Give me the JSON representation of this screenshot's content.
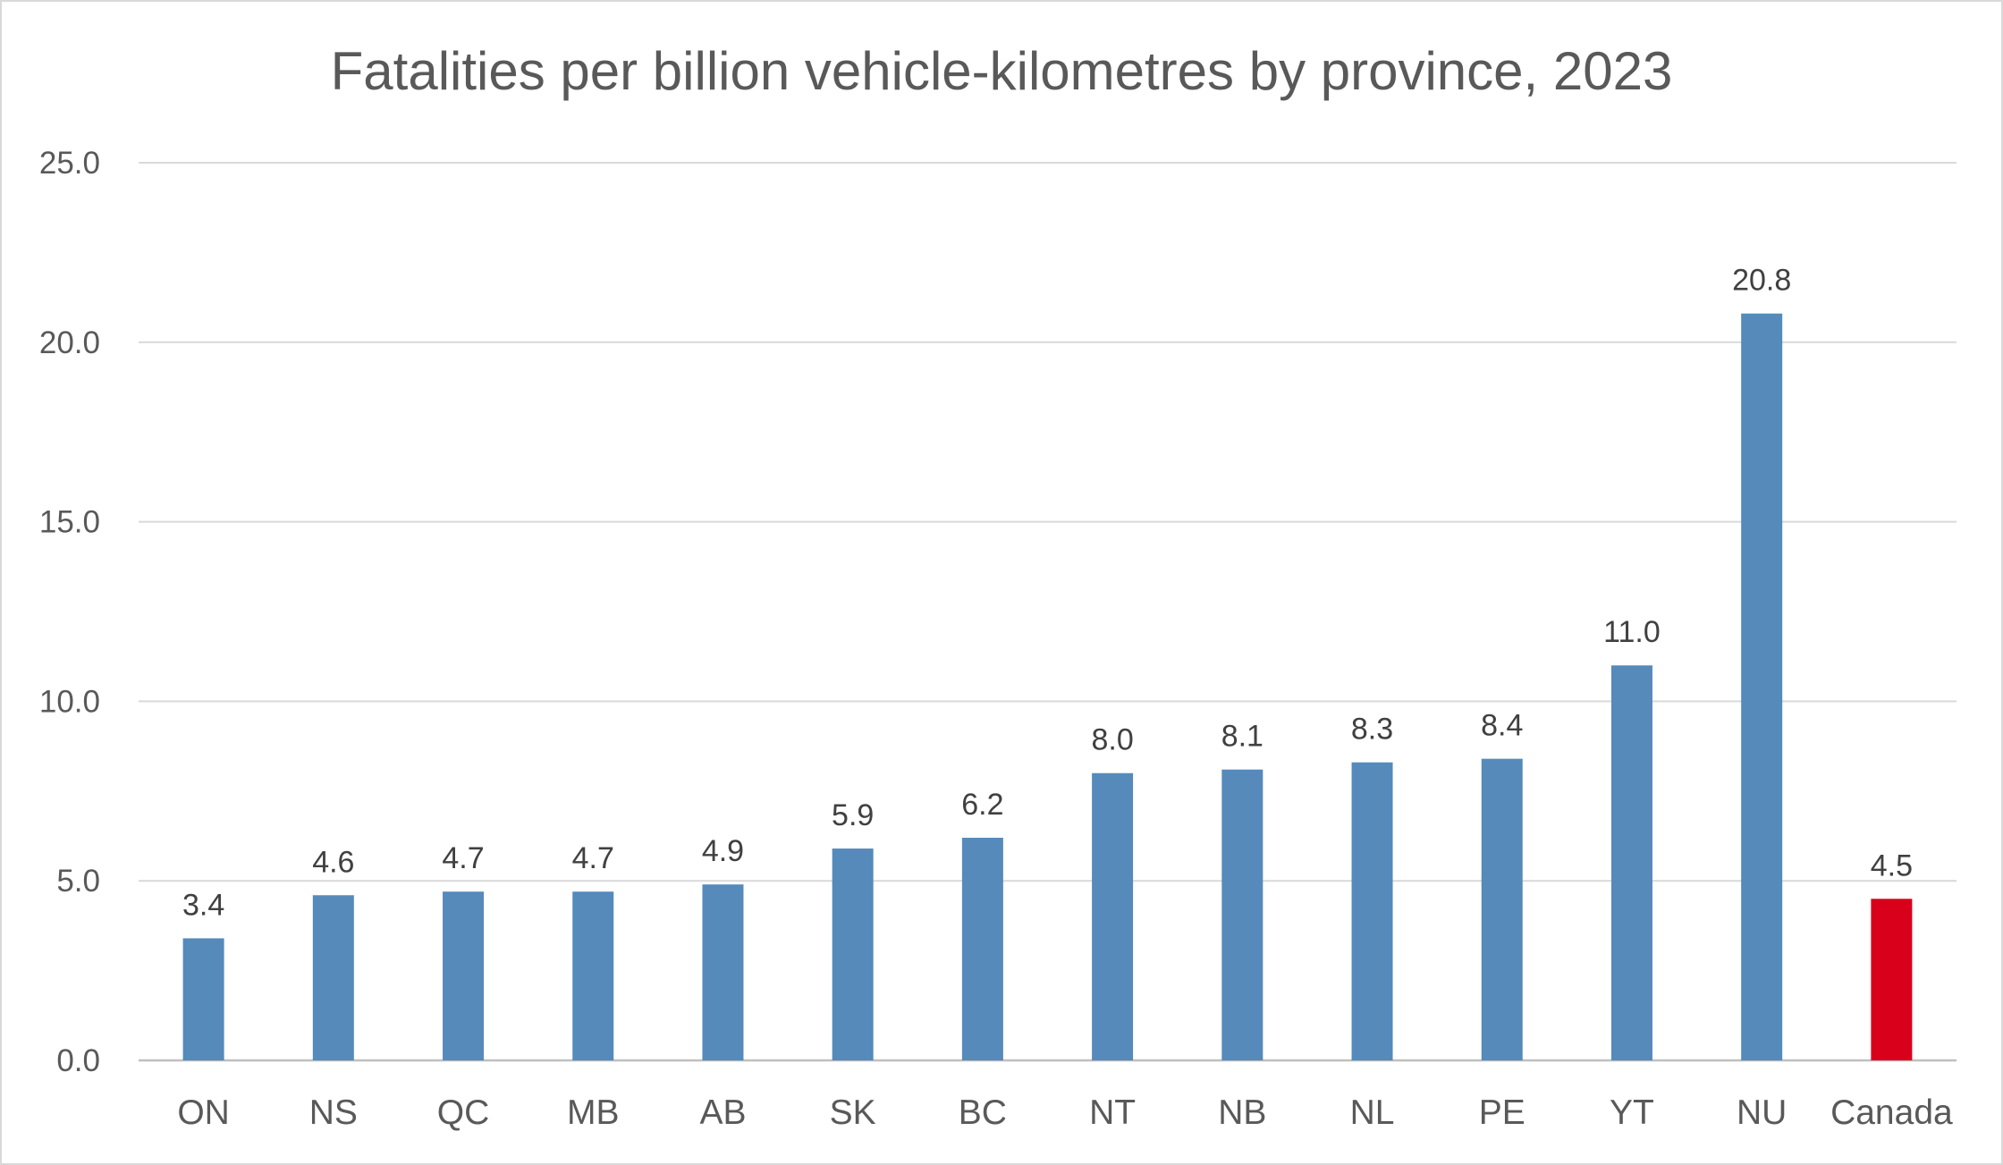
{
  "chart_data": {
    "type": "bar",
    "title": "Fatalities per billion vehicle-kilometres by province, 2023",
    "xlabel": "",
    "ylabel": "",
    "categories": [
      "ON",
      "NS",
      "QC",
      "MB",
      "AB",
      "SK",
      "BC",
      "NT",
      "NB",
      "NL",
      "PE",
      "YT",
      "NU",
      "Canada"
    ],
    "values": [
      3.4,
      4.6,
      4.7,
      4.7,
      4.9,
      5.9,
      6.2,
      8.0,
      8.1,
      8.3,
      8.4,
      11.0,
      20.8,
      4.5
    ],
    "data_labels": [
      "3.4",
      "4.6",
      "4.7",
      "4.7",
      "4.9",
      "5.9",
      "6.2",
      "8.0",
      "8.1",
      "8.3",
      "8.4",
      "11.0",
      "20.8",
      "4.5"
    ],
    "ylim": [
      0,
      25
    ],
    "yticks": [
      0,
      5,
      10,
      15,
      20,
      25
    ],
    "ytick_labels": [
      "0.0",
      "5.0",
      "10.0",
      "15.0",
      "20.0",
      "25.0"
    ],
    "grid": true,
    "legend": "none",
    "colors": {
      "default_bar": "#558ABB",
      "highlight_bar": "#D9001B",
      "highlight_category": "Canada"
    }
  }
}
